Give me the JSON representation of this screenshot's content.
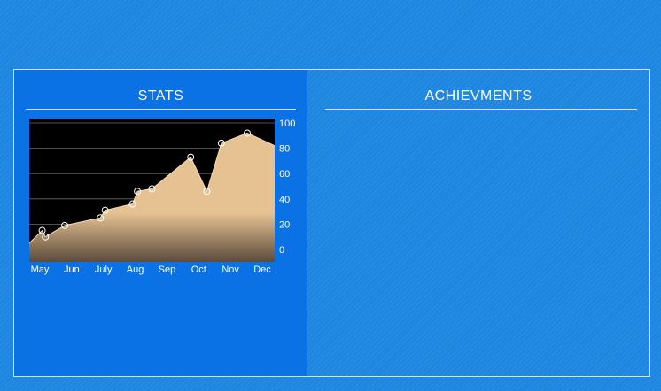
{
  "stats": {
    "title": "STATS"
  },
  "achievements": {
    "title": "ACHIEVMENTS"
  },
  "colors": {
    "background": "#1d86e0",
    "stats_panel": "#0b72e5",
    "chart_background": "#000000",
    "area_top": "#e6c293",
    "area_bottom": "#5c4b3c",
    "frame_line": "#cfe6fb"
  },
  "chart_data": {
    "type": "area",
    "title": "",
    "xlabel": "",
    "ylabel": "",
    "x_ticks": [
      "May",
      "Jun",
      "July",
      "Aug",
      "Sep",
      "Oct",
      "Nov",
      "Dec"
    ],
    "y_ticks": [
      0,
      20,
      40,
      60,
      80,
      100
    ],
    "ylim": [
      -8,
      100
    ],
    "grid": true,
    "y_axis_position": "right",
    "x_range": [
      0.5,
      8.1
    ],
    "points": [
      {
        "x": 0.5,
        "y": 5,
        "marker": false
      },
      {
        "x": 0.9,
        "y": 15,
        "marker": true
      },
      {
        "x": 1.0,
        "y": 10,
        "marker": true
      },
      {
        "x": 1.6,
        "y": 19,
        "marker": true
      },
      {
        "x": 2.7,
        "y": 25,
        "marker": true
      },
      {
        "x": 2.85,
        "y": 31,
        "marker": true
      },
      {
        "x": 3.7,
        "y": 36,
        "marker": true
      },
      {
        "x": 3.85,
        "y": 46,
        "marker": true
      },
      {
        "x": 4.3,
        "y": 48,
        "marker": true
      },
      {
        "x": 5.5,
        "y": 73,
        "marker": true
      },
      {
        "x": 6.0,
        "y": 46,
        "marker": true
      },
      {
        "x": 6.45,
        "y": 84,
        "marker": true
      },
      {
        "x": 7.25,
        "y": 92,
        "marker": true
      },
      {
        "x": 8.1,
        "y": 82,
        "marker": false
      }
    ]
  }
}
